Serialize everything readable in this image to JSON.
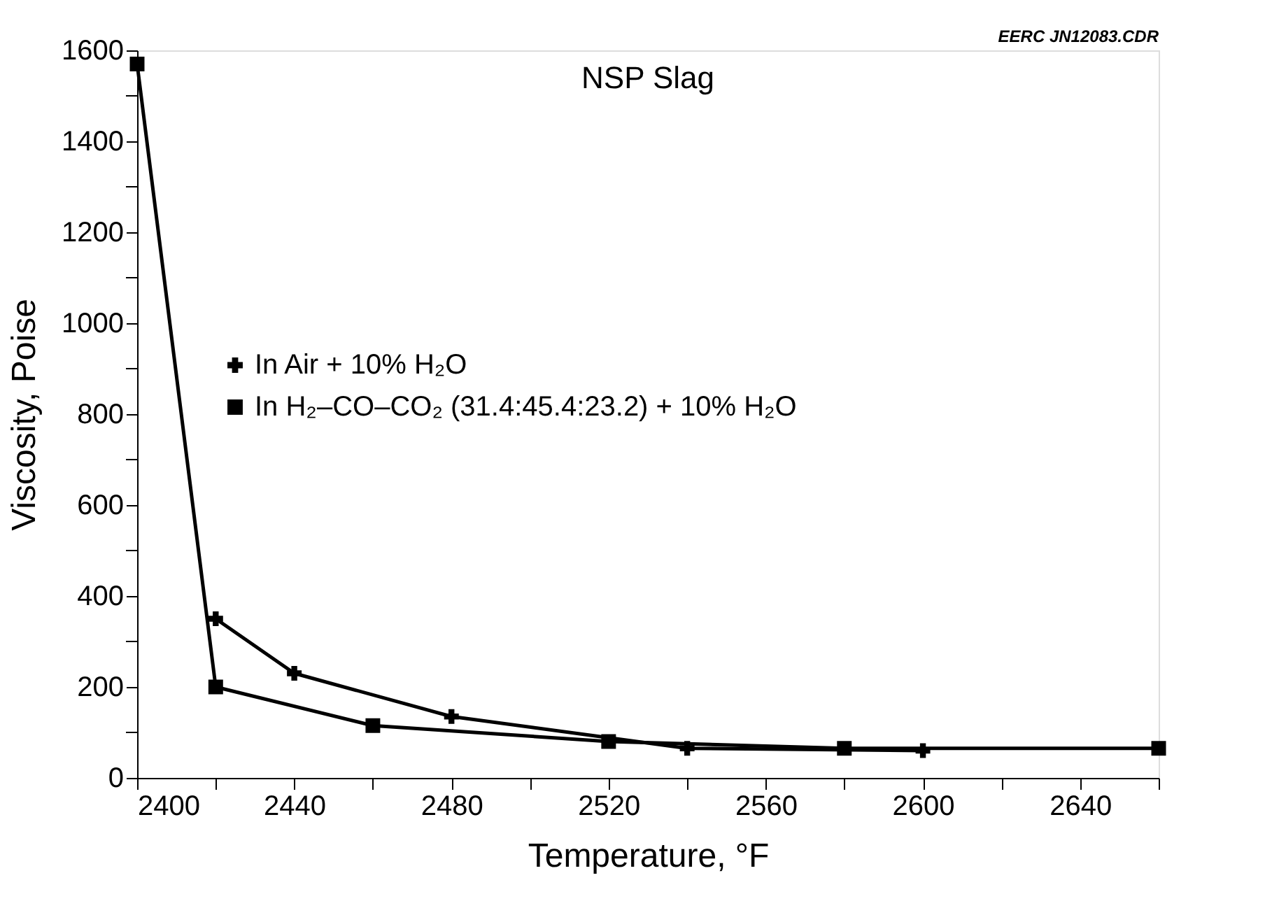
{
  "chart_data": {
    "type": "line",
    "title": "NSP Slag",
    "xlabel": "Temperature, °F",
    "ylabel": "Viscosity, Poise",
    "annotations": [
      "EERC JN12083.CDR"
    ],
    "xlim": [
      2400,
      2660
    ],
    "ylim": [
      0,
      1600
    ],
    "xticks": [
      2400,
      {
        "value": 2420,
        "label": null
      },
      2440,
      {
        "value": 2460,
        "label": null
      },
      2480,
      {
        "value": 2500,
        "label": null
      },
      2520,
      {
        "value": 2540,
        "label": null
      },
      2560,
      {
        "value": 2580,
        "label": null
      },
      2600,
      {
        "value": 2620,
        "label": null
      },
      2640,
      {
        "value": 2660,
        "label": null
      }
    ],
    "yticks": [
      0,
      {
        "value": 100,
        "label": null
      },
      200,
      {
        "value": 300,
        "label": null
      },
      400,
      {
        "value": 500,
        "label": null
      },
      600,
      {
        "value": 700,
        "label": null
      },
      800,
      {
        "value": 900,
        "label": null
      },
      1000,
      {
        "value": 1100,
        "label": null
      },
      1200,
      {
        "value": 1300,
        "label": null
      },
      1400,
      {
        "value": 1500,
        "label": null
      },
      1600
    ],
    "grid": false,
    "legend": "left",
    "line_style": "solid",
    "series": [
      {
        "name": "In Air + 10% H₂O",
        "color": "#000000",
        "marker": "cross",
        "x": [
          2420,
          2440,
          2480,
          2540,
          2600
        ],
        "values": [
          350,
          230,
          135,
          65,
          60
        ]
      },
      {
        "name": "In H₂–CO–CO₂ (31.4:45.4:23.2) + 10% H₂O",
        "color": "#000000",
        "marker": "square",
        "x": [
          2400,
          2420,
          2460,
          2520,
          2580,
          2660
        ],
        "values": [
          1570,
          200,
          115,
          80,
          65,
          65
        ]
      }
    ]
  }
}
